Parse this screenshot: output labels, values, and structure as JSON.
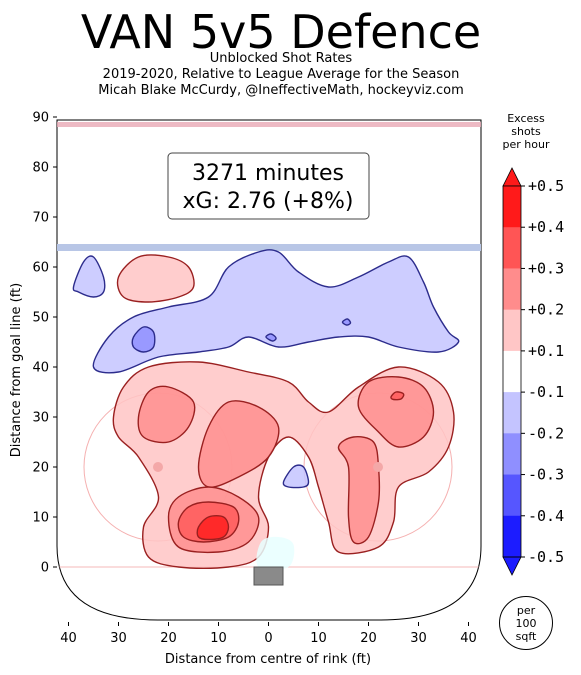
{
  "title": "VAN 5v5 Defence",
  "subtitle_lines": [
    "Unblocked Shot Rates",
    "2019-2020, Relative to League Average for the Season",
    "Micah Blake McCurdy, @IneffectiveMath, hockeyviz.com"
  ],
  "colorbar": {
    "title_lines": [
      "Excess",
      "shots",
      "per hour"
    ],
    "tick_labels": [
      "+0.5",
      "+0.4",
      "+0.3",
      "+0.2",
      "+0.1",
      "-0.1",
      "-0.2",
      "-0.3",
      "-0.4",
      "-0.5"
    ],
    "colors": [
      "#ff1a1a",
      "#ff5555",
      "#ff8c8c",
      "#ffc6c6",
      "#ffffff",
      "#c4c4ff",
      "#8f8fff",
      "#5656ff",
      "#1c1cff"
    ],
    "unit_lines": [
      "per",
      "100",
      "sqft"
    ]
  },
  "annotation": {
    "line1": "3271 minutes",
    "line2": "xG: 2.76 (+8%)"
  },
  "chart_data": {
    "type": "heatmap",
    "title": "VAN 5v5 Defence",
    "xlabel": "Distance from centre of rink (ft)",
    "ylabel": "Distance from goal line (ft)",
    "xlim": [
      -42,
      42
    ],
    "ylim": [
      -11,
      90
    ],
    "x_tick_values": [
      -40,
      -30,
      -20,
      -10,
      0,
      10,
      20,
      30,
      40
    ],
    "x_tick_labels": [
      "40",
      "30",
      "20",
      "10",
      "0",
      "10",
      "20",
      "30",
      "40"
    ],
    "y_ticks": [
      0,
      10,
      20,
      30,
      40,
      50,
      60,
      70,
      80,
      90
    ],
    "regions": [
      {
        "level": -1,
        "points": [
          [
            -35,
            40
          ],
          [
            -32,
            46
          ],
          [
            -27,
            50
          ],
          [
            -20,
            52
          ],
          [
            -12,
            54
          ],
          [
            -8,
            60
          ],
          [
            -2,
            63
          ],
          [
            2,
            63
          ],
          [
            6,
            59
          ],
          [
            12,
            56
          ],
          [
            18,
            58
          ],
          [
            24,
            61
          ],
          [
            28,
            62
          ],
          [
            31,
            57
          ],
          [
            33,
            52
          ],
          [
            36,
            47
          ],
          [
            38,
            45
          ],
          [
            34,
            43
          ],
          [
            26,
            44
          ],
          [
            20,
            46
          ],
          [
            14,
            46
          ],
          [
            8,
            45
          ],
          [
            2,
            44
          ],
          [
            -4,
            46
          ],
          [
            -8,
            44
          ],
          [
            -14,
            43
          ],
          [
            -22,
            42
          ],
          [
            -30,
            39
          ]
        ]
      },
      {
        "level": -1,
        "points": [
          [
            -39,
            56
          ],
          [
            -37,
            61
          ],
          [
            -35,
            62
          ],
          [
            -33,
            58
          ],
          [
            -33,
            55
          ],
          [
            -35,
            54
          ],
          [
            -38,
            55
          ]
        ]
      },
      {
        "level": -2,
        "points": [
          [
            -27,
            46
          ],
          [
            -25,
            48
          ],
          [
            -23,
            47
          ],
          [
            -23,
            44
          ],
          [
            -25,
            43
          ],
          [
            -27,
            44
          ]
        ]
      },
      {
        "level": -1,
        "points": [
          [
            3,
            17
          ],
          [
            5,
            20
          ],
          [
            7,
            20
          ],
          [
            8,
            17
          ],
          [
            7,
            16
          ],
          [
            4,
            16
          ]
        ]
      },
      {
        "level": -2,
        "points": [
          [
            -0.5,
            46
          ],
          [
            0.5,
            46.6
          ],
          [
            1.5,
            45.8
          ],
          [
            0.8,
            45.2
          ]
        ]
      },
      {
        "level": -2,
        "points": [
          [
            14.8,
            49
          ],
          [
            15.8,
            49.6
          ],
          [
            16.4,
            48.8
          ],
          [
            15.6,
            48.4
          ]
        ]
      },
      {
        "level": 1,
        "points": [
          [
            -30,
            58
          ],
          [
            -26,
            62
          ],
          [
            -20,
            62
          ],
          [
            -16,
            60
          ],
          [
            -15,
            56
          ],
          [
            -18,
            54
          ],
          [
            -24,
            53
          ],
          [
            -29,
            54
          ]
        ]
      },
      {
        "level": 1,
        "points": [
          [
            -31,
            30
          ],
          [
            -29,
            36
          ],
          [
            -24,
            40
          ],
          [
            -14,
            41
          ],
          [
            -4,
            39
          ],
          [
            4,
            37
          ],
          [
            8,
            33
          ],
          [
            12,
            31
          ],
          [
            18,
            36
          ],
          [
            26,
            40
          ],
          [
            34,
            37
          ],
          [
            37,
            31
          ],
          [
            36,
            24
          ],
          [
            32,
            19
          ],
          [
            26,
            16
          ],
          [
            25,
            9
          ],
          [
            22,
            4
          ],
          [
            14,
            3
          ],
          [
            12,
            9
          ],
          [
            10,
            16
          ],
          [
            8,
            22
          ],
          [
            4,
            26
          ],
          [
            0,
            22
          ],
          [
            -2,
            14
          ],
          [
            0,
            8
          ],
          [
            -2,
            2
          ],
          [
            -8,
            0
          ],
          [
            -18,
            0
          ],
          [
            -24,
            2
          ],
          [
            -25,
            8
          ],
          [
            -22,
            14
          ],
          [
            -26,
            22
          ],
          [
            -30,
            26
          ]
        ]
      },
      {
        "level": 2,
        "points": [
          [
            -26,
            30
          ],
          [
            -24,
            35
          ],
          [
            -20,
            36
          ],
          [
            -15,
            33
          ],
          [
            -16,
            28
          ],
          [
            -20,
            25
          ],
          [
            -25,
            26
          ]
        ]
      },
      {
        "level": 2,
        "points": [
          [
            -14,
            20
          ],
          [
            -12,
            28
          ],
          [
            -8,
            33
          ],
          [
            -2,
            32
          ],
          [
            2,
            28
          ],
          [
            0,
            22
          ],
          [
            -6,
            18
          ],
          [
            -12,
            16
          ]
        ]
      },
      {
        "level": 2,
        "points": [
          [
            -20,
            10
          ],
          [
            -18,
            14
          ],
          [
            -12,
            16
          ],
          [
            -6,
            14
          ],
          [
            -2,
            10
          ],
          [
            -4,
            5
          ],
          [
            -10,
            3
          ],
          [
            -18,
            4
          ]
        ]
      },
      {
        "level": 2,
        "points": [
          [
            16,
            20
          ],
          [
            14,
            24
          ],
          [
            17,
            26
          ],
          [
            21,
            25
          ],
          [
            22,
            20
          ],
          [
            22,
            13
          ],
          [
            20,
            6
          ],
          [
            17,
            5
          ],
          [
            16,
            10
          ]
        ]
      },
      {
        "level": 2,
        "points": [
          [
            18,
            32
          ],
          [
            20,
            37
          ],
          [
            26,
            38
          ],
          [
            31,
            36
          ],
          [
            33,
            31
          ],
          [
            31,
            26
          ],
          [
            26,
            24
          ],
          [
            22,
            27
          ]
        ]
      },
      {
        "level": 3,
        "points": [
          [
            -18,
            9
          ],
          [
            -16,
            12
          ],
          [
            -12,
            13
          ],
          [
            -7,
            12
          ],
          [
            -6,
            9
          ],
          [
            -8,
            6
          ],
          [
            -13,
            5
          ],
          [
            -17,
            6
          ]
        ]
      },
      {
        "level": 4,
        "points": [
          [
            -14,
            8
          ],
          [
            -12,
            10
          ],
          [
            -9,
            10
          ],
          [
            -8,
            8
          ],
          [
            -9,
            6
          ],
          [
            -12,
            5.5
          ],
          [
            -14,
            6
          ]
        ]
      },
      {
        "level": 3,
        "points": [
          [
            24.5,
            34
          ],
          [
            25.5,
            35
          ],
          [
            27,
            34.6
          ],
          [
            26.5,
            33.6
          ],
          [
            25,
            33.5
          ]
        ]
      },
      {
        "level": 0.5,
        "points": [
          [
            -2,
            0
          ],
          [
            -1.5,
            5
          ],
          [
            2,
            6
          ],
          [
            5,
            4.5
          ],
          [
            4,
            0
          ]
        ]
      }
    ]
  }
}
